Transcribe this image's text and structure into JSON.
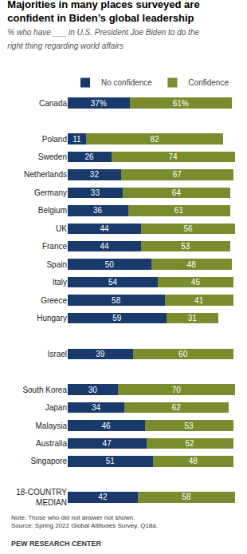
{
  "chart_data": {
    "type": "bar",
    "orientation": "horizontal",
    "stacked": true,
    "data_labels": true,
    "grid": false,
    "legend": "top",
    "tick_labels": "y",
    "title": "Majorities in many places surveyed are\nconfident in Biden’s global leadership",
    "subtitle": "% who have ___ in U.S. President Joe Biden to do the\nright thing regarding world affairs",
    "annotations": [
      "Note: Those who did not answer not shown.\nSource: Spring 2022 Global Attitudes Survey. Q18a.",
      "PEW RESEARCH CENTER"
    ],
    "xlim": [
      0,
      100
    ],
    "xticks": [],
    "categories": [
      "Canada",
      null,
      "Poland",
      "Sweden",
      "Netherlands",
      "Germany",
      "Belgium",
      "UK",
      "France",
      "Spain",
      "Italy",
      "Greece",
      "Hungary",
      null,
      "Israel",
      null,
      "South Korea",
      "Japan",
      "Malaysia",
      "Australia",
      "Singapore",
      null,
      "18-COUNTRY\nMEDIAN"
    ],
    "series": [
      {
        "name": "No confidence",
        "color": "#1a3a6b",
        "values": [
          37,
          null,
          11,
          26,
          32,
          33,
          36,
          44,
          44,
          50,
          54,
          58,
          59,
          null,
          39,
          null,
          30,
          34,
          46,
          47,
          51,
          null,
          42
        ],
        "value_labels": [
          "37%",
          null,
          "11",
          "26",
          "32",
          "33",
          "36",
          "44",
          "44",
          "50",
          "54",
          "58",
          "59",
          null,
          "39",
          null,
          "30",
          "34",
          "46",
          "47",
          "51",
          null,
          "42"
        ]
      },
      {
        "name": "Confidence",
        "color": "#7a8c2e",
        "values": [
          61,
          null,
          82,
          74,
          67,
          64,
          61,
          56,
          53,
          48,
          45,
          41,
          31,
          null,
          60,
          null,
          70,
          62,
          53,
          52,
          48,
          null,
          58
        ],
        "value_labels": [
          "61%",
          null,
          "82",
          "74",
          "67",
          "64",
          "61",
          "56",
          "53",
          "48",
          "45",
          "41",
          "31",
          null,
          "60",
          null,
          "70",
          "62",
          "53",
          "52",
          "48",
          null,
          "58"
        ]
      }
    ]
  }
}
